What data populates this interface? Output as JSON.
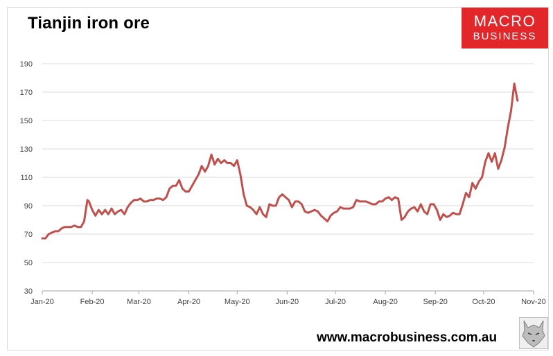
{
  "header": {
    "title": "Tianjin iron ore"
  },
  "logo": {
    "line1": "MACRO",
    "line2": "BUSINESS",
    "color": "#e3262a"
  },
  "footer": {
    "url": "www.macrobusiness.com.au"
  },
  "chart_data": {
    "type": "line",
    "title": "Tianjin iron ore",
    "xlabel": "",
    "ylabel": "",
    "ylim": [
      30,
      190
    ],
    "yticks": [
      30,
      50,
      70,
      90,
      110,
      130,
      150,
      170,
      190
    ],
    "xlim": [
      0,
      305
    ],
    "xtick_positions": [
      0,
      31,
      60,
      91,
      121,
      152,
      182,
      213,
      244,
      274,
      305
    ],
    "xtick_labels": [
      "Jan-20",
      "Feb-20",
      "Mar-20",
      "Apr-20",
      "May-20",
      "Jun-20",
      "Jul-20",
      "Aug-20",
      "Sep-20",
      "Oct-20",
      "Nov-20"
    ],
    "grid": true,
    "legend": "none",
    "line_color": "#c0504d",
    "series": [
      {
        "x": [
          0,
          2,
          4,
          6,
          8,
          10,
          12,
          14,
          16,
          18,
          20,
          22,
          24,
          26,
          28,
          29,
          30,
          31,
          33,
          35,
          37,
          39,
          41,
          43,
          45,
          47,
          49,
          51,
          53,
          55,
          57,
          59,
          61,
          63,
          65,
          67,
          69,
          71,
          73,
          75,
          77,
          79,
          81,
          83,
          85,
          87,
          89,
          91,
          93,
          95,
          97,
          99,
          101,
          103,
          105,
          107,
          109,
          111,
          113,
          115,
          117,
          119,
          121,
          123,
          125,
          127,
          129,
          131,
          133,
          135,
          137,
          139,
          141,
          143,
          145,
          147,
          149,
          151,
          153,
          155,
          157,
          159,
          161,
          163,
          165,
          167,
          169,
          171,
          173,
          175,
          177,
          179,
          181,
          183,
          185,
          187,
          189,
          191,
          193,
          195,
          197,
          199,
          201,
          203,
          205,
          207,
          209,
          211,
          213,
          215,
          217,
          219,
          221,
          223,
          225,
          227,
          229,
          231,
          233,
          235,
          237,
          239,
          241,
          243,
          245,
          247,
          249,
          251,
          253,
          255,
          257,
          259,
          261,
          263,
          265,
          267,
          269,
          271,
          273,
          275,
          277,
          279,
          281,
          283,
          285,
          287,
          289,
          291,
          293,
          295
        ],
        "y": [
          67,
          67,
          70,
          71,
          72,
          72,
          74,
          75,
          75,
          75,
          76,
          75,
          75,
          79,
          94,
          93,
          90,
          87,
          83,
          87,
          84,
          87,
          84,
          88,
          84,
          86,
          87,
          84,
          89,
          92,
          94,
          94,
          95,
          93,
          93,
          94,
          94,
          95,
          95,
          94,
          96,
          102,
          104,
          104,
          108,
          102,
          100,
          100,
          104,
          108,
          112,
          118,
          114,
          118,
          126,
          119,
          123,
          120,
          122,
          120,
          120,
          118,
          122,
          112,
          98,
          90,
          89,
          87,
          84,
          89,
          84,
          82,
          91,
          90,
          90,
          96,
          98,
          96,
          94,
          89,
          93,
          93,
          91,
          86,
          85,
          86,
          87,
          86,
          83,
          81,
          79,
          83,
          85,
          86,
          89,
          88,
          88,
          88,
          89,
          94,
          93,
          93,
          93,
          92,
          91,
          91,
          93,
          93,
          95,
          96,
          94,
          96,
          95,
          80,
          82,
          86,
          88,
          89,
          86,
          91,
          86,
          84,
          91,
          91,
          87,
          80,
          84,
          82,
          83,
          85,
          84,
          84,
          91,
          99,
          96,
          106,
          102,
          107,
          110,
          121,
          127,
          121,
          127,
          116,
          122,
          131,
          145,
          157,
          176,
          164
        ]
      }
    ]
  }
}
